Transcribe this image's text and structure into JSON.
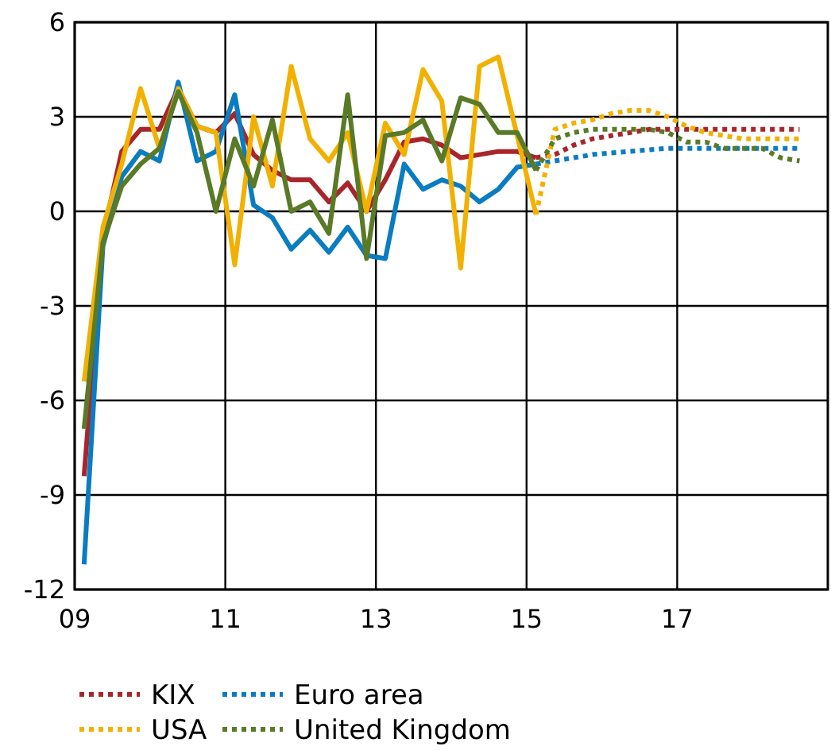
{
  "chart_data": {
    "type": "line",
    "xlim": [
      9,
      19
    ],
    "xticks": [
      {
        "value": 9,
        "label": "09"
      },
      11,
      13,
      15,
      17
    ],
    "ylim": [
      -12,
      6
    ],
    "yticks": [
      -12,
      -9,
      -6,
      -3,
      0,
      3,
      6
    ],
    "grid": true,
    "legend": "bottom",
    "marker": "none",
    "series": [
      {
        "color": "#a8262b",
        "line_style": "solid",
        "x": [
          9.125,
          9.375,
          9.625,
          9.875,
          10.125,
          10.375,
          10.625,
          10.875,
          11.125,
          11.375,
          11.625,
          11.875,
          12.125,
          12.375,
          12.625,
          12.875,
          13.125,
          13.375,
          13.625,
          13.875,
          14.125,
          14.375,
          14.625,
          14.875,
          15.125
        ],
        "values": [
          -8.4,
          -0.8,
          1.9,
          2.6,
          2.6,
          3.9,
          2.7,
          2.5,
          3.1,
          1.8,
          1.3,
          1.0,
          1.0,
          0.3,
          0.9,
          0.0,
          1.0,
          2.2,
          2.3,
          2.1,
          1.7,
          1.8,
          1.9,
          1.9,
          1.7
        ]
      },
      {
        "color": "#0a7cc1",
        "line_style": "solid",
        "x": [
          9.125,
          9.375,
          9.625,
          9.875,
          10.125,
          10.375,
          10.625,
          10.875,
          11.125,
          11.375,
          11.625,
          11.875,
          12.125,
          12.375,
          12.625,
          12.875,
          13.125,
          13.375,
          13.625,
          13.875,
          14.125,
          14.375,
          14.625,
          14.875,
          15.125
        ],
        "values": [
          -11.2,
          -1.1,
          1.1,
          1.9,
          1.6,
          4.1,
          1.6,
          1.9,
          3.7,
          0.2,
          -0.2,
          -1.2,
          -0.6,
          -1.3,
          -0.5,
          -1.4,
          -1.5,
          1.5,
          0.7,
          1.0,
          0.8,
          0.3,
          0.7,
          1.4,
          1.5
        ]
      },
      {
        "color": "#f2b100",
        "line_style": "solid",
        "x": [
          9.125,
          9.375,
          9.625,
          9.875,
          10.125,
          10.375,
          10.625,
          10.875,
          11.125,
          11.375,
          11.625,
          11.875,
          12.125,
          12.375,
          12.625,
          12.875,
          13.125,
          13.375,
          13.625,
          13.875,
          14.125,
          14.375,
          14.625,
          14.875,
          15.125
        ],
        "values": [
          -5.4,
          -0.5,
          1.5,
          3.9,
          2.0,
          3.9,
          2.7,
          2.5,
          -1.7,
          3.0,
          0.8,
          4.6,
          2.3,
          1.6,
          2.5,
          0.0,
          2.8,
          1.8,
          4.5,
          3.5,
          -1.8,
          4.6,
          4.9,
          2.4,
          -0.1
        ]
      },
      {
        "color": "#5a7a27",
        "line_style": "solid",
        "x": [
          9.125,
          9.375,
          9.625,
          9.875,
          10.125,
          10.375,
          10.625,
          10.875,
          11.125,
          11.375,
          11.625,
          11.875,
          12.125,
          12.375,
          12.625,
          12.875,
          13.125,
          13.375,
          13.625,
          13.875,
          14.125,
          14.375,
          14.625,
          14.875,
          15.125
        ],
        "values": [
          -6.9,
          -1.0,
          0.8,
          1.5,
          2.0,
          3.8,
          2.5,
          0.0,
          2.3,
          0.8,
          2.9,
          0.0,
          0.3,
          -0.7,
          3.7,
          -1.5,
          2.4,
          2.5,
          2.9,
          1.6,
          3.6,
          3.4,
          2.5,
          2.5,
          1.3
        ]
      },
      {
        "name": "KIX",
        "color": "#a8262b",
        "line_style": "dotted",
        "x": [
          15.125,
          15.375,
          15.625,
          15.875,
          16.125,
          16.375,
          16.625,
          16.875,
          17.125,
          17.375,
          17.625,
          17.875,
          18.125,
          18.375,
          18.625
        ],
        "values": [
          1.7,
          1.8,
          2.1,
          2.3,
          2.4,
          2.5,
          2.6,
          2.6,
          2.6,
          2.6,
          2.6,
          2.6,
          2.6,
          2.6,
          2.6
        ]
      },
      {
        "name": "Euro area",
        "color": "#0a7cc1",
        "line_style": "dotted",
        "x": [
          15.125,
          15.375,
          15.625,
          15.875,
          16.125,
          16.375,
          16.625,
          16.875,
          17.125,
          17.375,
          17.625,
          17.875,
          18.125,
          18.375,
          18.625
        ],
        "values": [
          1.5,
          1.6,
          1.7,
          1.8,
          1.85,
          1.9,
          1.95,
          2.0,
          2.0,
          2.0,
          2.0,
          2.0,
          2.0,
          2.0,
          2.0
        ]
      },
      {
        "name": "USA",
        "color": "#f2b100",
        "line_style": "dotted",
        "x": [
          15.125,
          15.375,
          15.625,
          15.875,
          16.125,
          16.375,
          16.625,
          16.875,
          17.125,
          17.375,
          17.625,
          17.875,
          18.125,
          18.375,
          18.625
        ],
        "values": [
          -0.1,
          2.6,
          2.8,
          2.9,
          3.1,
          3.2,
          3.2,
          3.0,
          2.7,
          2.5,
          2.4,
          2.3,
          2.3,
          2.3,
          2.3
        ]
      },
      {
        "name": "United Kingdom",
        "color": "#5a7a27",
        "line_style": "dotted",
        "x": [
          15.125,
          15.375,
          15.625,
          15.875,
          16.125,
          16.375,
          16.625,
          16.875,
          17.125,
          17.375,
          17.625,
          17.875,
          18.125,
          18.375,
          18.625
        ],
        "values": [
          1.3,
          2.3,
          2.5,
          2.6,
          2.6,
          2.6,
          2.6,
          2.5,
          2.2,
          2.2,
          2.0,
          2.0,
          2.0,
          1.7,
          1.6
        ]
      }
    ]
  }
}
